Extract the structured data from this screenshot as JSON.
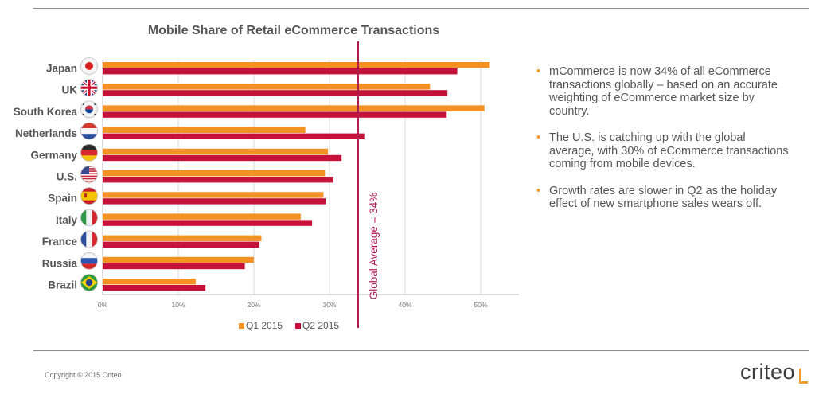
{
  "chart_data": {
    "type": "bar",
    "orientation": "horizontal",
    "title": "Mobile Share of Retail eCommerce Transactions",
    "categories": [
      "Japan",
      "UK",
      "South Korea",
      "Netherlands",
      "Germany",
      "U.S.",
      "Spain",
      "Italy",
      "France",
      "Russia",
      "Brazil"
    ],
    "series": [
      {
        "name": "Q1 2015",
        "color": "#f39125",
        "values": [
          51.2,
          43.3,
          50.5,
          26.8,
          29.8,
          29.4,
          29.2,
          26.2,
          21.0,
          20.0,
          12.3
        ]
      },
      {
        "name": "Q2 2015",
        "color": "#c4123a",
        "values": [
          46.9,
          45.6,
          45.5,
          34.6,
          31.6,
          30.5,
          29.5,
          27.7,
          20.7,
          18.8,
          13.6
        ]
      }
    ],
    "x_ticks": [
      "0%",
      "10%",
      "20%",
      "30%",
      "40%",
      "50%"
    ],
    "xlim": [
      0,
      55
    ],
    "grid": "vertical",
    "legend": "bottom",
    "reference_line": {
      "value": 34,
      "label": "Global Average = 34%",
      "color": "#b01d52"
    },
    "icons": [
      "japan-flag-icon",
      "uk-flag-icon",
      "south-korea-flag-icon",
      "netherlands-flag-icon",
      "germany-flag-icon",
      "us-flag-icon",
      "spain-flag-icon",
      "italy-flag-icon",
      "france-flag-icon",
      "russia-flag-icon",
      "brazil-flag-icon"
    ]
  },
  "bullets": [
    "mCommerce is now 34% of all eCommerce transactions globally – based on an accurate weighting of eCommerce market size by country.",
    "The U.S. is catching up with the global average, with 30% of eCommerce transactions coming from mobile devices.",
    "Growth rates are slower in Q2 as the holiday effect of new smartphone sales wears off."
  ],
  "bullet_marker": "•",
  "footer": {
    "copyright": "Copyright © 2015 Criteo",
    "brand": "criteo"
  }
}
